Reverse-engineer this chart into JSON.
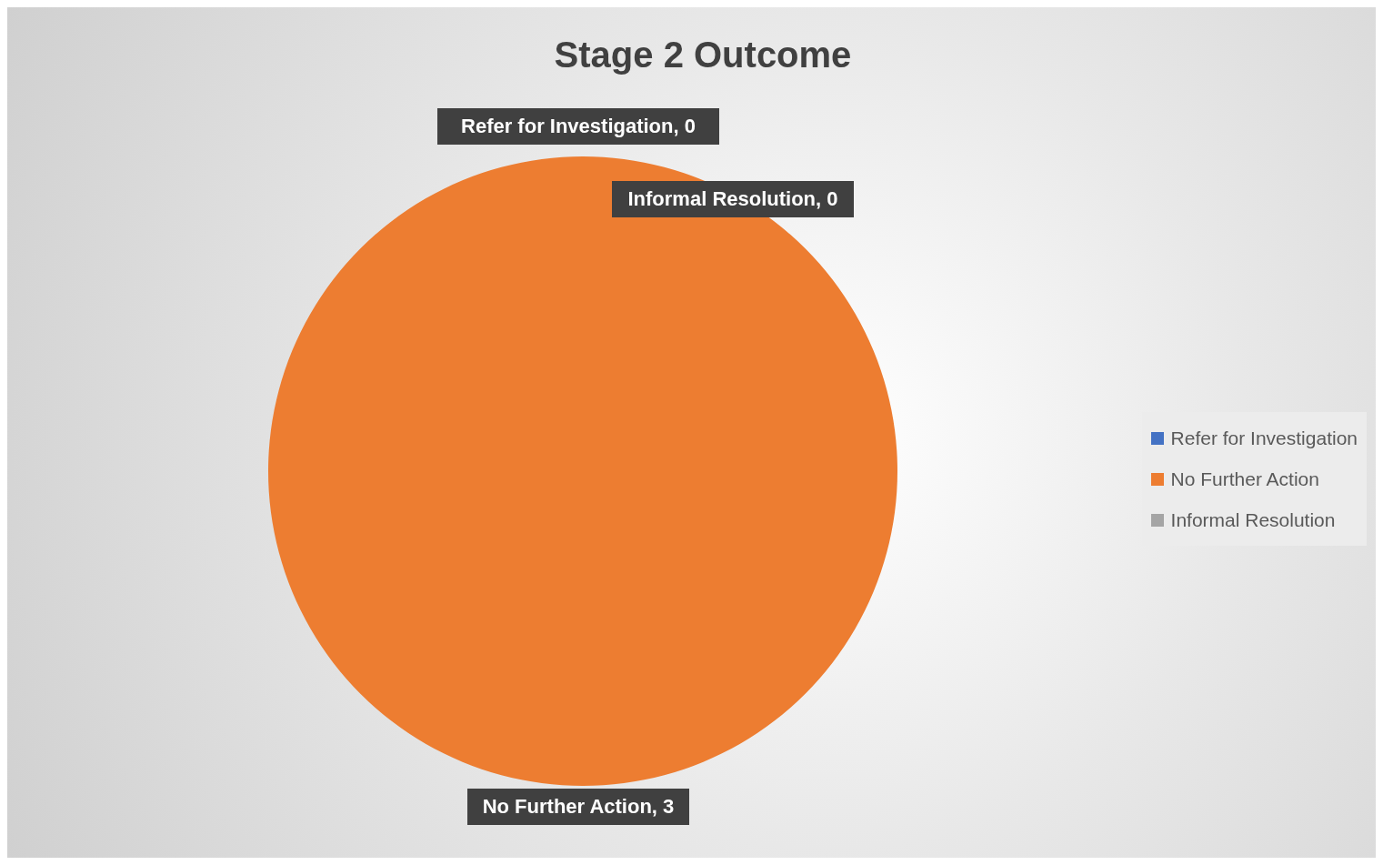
{
  "chart_data": {
    "type": "pie",
    "title": "Stage 2 Outcome",
    "categories": [
      "Refer for Investigation",
      "No Further Action",
      "Informal Resolution"
    ],
    "values": [
      0,
      3,
      0
    ],
    "value_labels": [
      "Refer for Investigation, 0",
      "No Further Action, 3",
      "Informal Resolution, 0"
    ],
    "colors": [
      "#4472c4",
      "#ed7d31",
      "#a5a5a5"
    ],
    "legend": "right"
  }
}
